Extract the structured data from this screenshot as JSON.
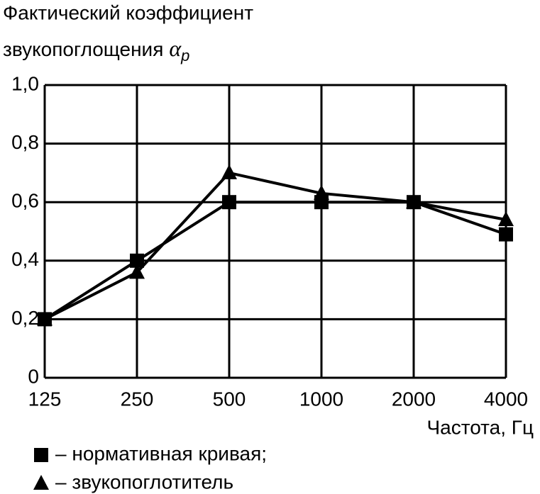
{
  "chart_data": {
    "type": "line",
    "title": [
      "Фактический коэффициент",
      "звукопоглощения"
    ],
    "title_symbol": "α",
    "title_symbol_subscript": "p",
    "x_label": "Частота, Гц",
    "categories": [
      125,
      250,
      500,
      1000,
      2000,
      4000
    ],
    "series": [
      {
        "name": "– нормативная кривая;",
        "marker": "square",
        "color": "#000000",
        "values": [
          0.2,
          0.4,
          0.6,
          0.6,
          0.6,
          0.49
        ]
      },
      {
        "name": "– звукопоглотитель",
        "marker": "triangle",
        "color": "#000000",
        "values": [
          0.2,
          0.36,
          0.7,
          0.63,
          0.6,
          0.54
        ]
      }
    ],
    "ylim": [
      0,
      1
    ],
    "yticks": [
      0,
      {
        "value": 0.2,
        "label": "0,2"
      },
      {
        "value": 0.4,
        "label": "0,4"
      },
      {
        "value": 0.6,
        "label": "0,6"
      },
      {
        "value": 0.8,
        "label": "0,8"
      },
      {
        "value": 1,
        "label": "1,0"
      }
    ],
    "grid": true
  }
}
